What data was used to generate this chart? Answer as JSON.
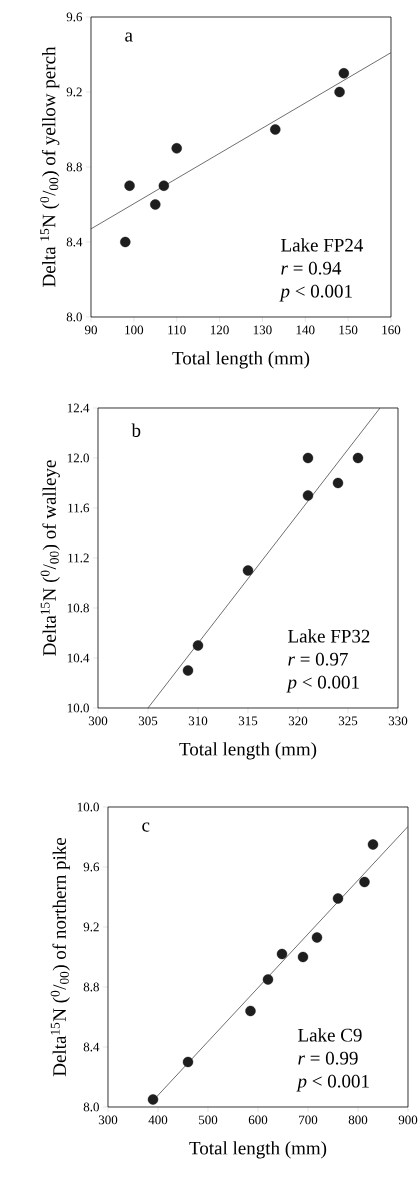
{
  "chart_data": [
    {
      "type": "scatter",
      "xlabel": "Total length (mm)",
      "ylabel": "Delta $^{15}$N ($^{0}$/$_{00}$) of yellow perch",
      "marker": "circle",
      "xlim": [
        90,
        160
      ],
      "xticks": [
        90,
        100,
        110,
        120,
        130,
        140,
        150,
        160
      ],
      "ylim": [
        8.0,
        9.6
      ],
      "yticks": [
        {
          "value": 8.0,
          "label": "8.0"
        },
        {
          "value": 8.4,
          "label": "8.4"
        },
        {
          "value": 8.8,
          "label": "8.8"
        },
        {
          "value": 9.2,
          "label": "9.2"
        },
        {
          "value": 9.6,
          "label": "9.6"
        }
      ],
      "annotations": [
        "a",
        "Lake FP24",
        "*r* = 0.94",
        "*p* < 0.001"
      ],
      "series": [
        {
          "color": "#1e1e1e",
          "x": [
            98,
            99,
            105,
            107,
            110,
            133,
            148,
            149
          ],
          "values": [
            8.4,
            8.7,
            8.6,
            8.7,
            8.9,
            9.0,
            9.2,
            9.3
          ]
        },
        {
          "type": "line",
          "color": "#303030",
          "marker": "none",
          "x": [
            90,
            160
          ],
          "values": [
            8.47,
            9.41
          ]
        }
      ]
    },
    {
      "type": "scatter",
      "xlabel": "Total length (mm)",
      "ylabel": "Delta$^{15}$N ($^{0}$/$_{00}$) of walleye",
      "marker": "circle",
      "xlim": [
        300,
        330
      ],
      "xticks": [
        300,
        305,
        310,
        315,
        320,
        325,
        330
      ],
      "ylim": [
        10.0,
        12.4
      ],
      "yticks": [
        {
          "value": 10.0,
          "label": "10.0"
        },
        {
          "value": 10.4,
          "label": "10.4"
        },
        {
          "value": 10.8,
          "label": "10.8"
        },
        {
          "value": 11.2,
          "label": "11.2"
        },
        {
          "value": 11.6,
          "label": "11.6"
        },
        {
          "value": 12.0,
          "label": "12.0"
        },
        {
          "value": 12.4,
          "label": "12.4"
        }
      ],
      "annotations": [
        "b",
        "Lake FP32",
        "*r* = 0.97",
        "*p* < 0.001"
      ],
      "series": [
        {
          "color": "#1e1e1e",
          "x": [
            309,
            310,
            315,
            321,
            321,
            324,
            326
          ],
          "values": [
            10.3,
            10.5,
            11.1,
            11.7,
            12.0,
            11.8,
            12.0
          ]
        },
        {
          "type": "line",
          "color": "#303030",
          "marker": "none",
          "x": [
            305,
            328.2
          ],
          "values": [
            10.0,
            12.4
          ]
        }
      ]
    },
    {
      "type": "scatter",
      "xlabel": "Total length (mm)",
      "ylabel": "Delta$^{15}$N ($^{0}$/$_{00}$) of northern pike",
      "marker": "circle",
      "xlim": [
        300,
        900
      ],
      "xticks": [
        300,
        400,
        500,
        600,
        700,
        800,
        900
      ],
      "ylim": [
        8.0,
        10.0
      ],
      "yticks": [
        {
          "value": 8.0,
          "label": "8.0"
        },
        {
          "value": 8.4,
          "label": "8.4"
        },
        {
          "value": 8.8,
          "label": "8.8"
        },
        {
          "value": 9.2,
          "label": "9.2"
        },
        {
          "value": 9.6,
          "label": "9.6"
        },
        {
          "value": 10.0,
          "label": "10.0"
        }
      ],
      "annotations": [
        "c",
        "Lake C9",
        "*r* = 0.99",
        "*p* < 0.001"
      ],
      "series": [
        {
          "color": "#1e1e1e",
          "x": [
            390,
            460,
            585,
            620,
            648,
            690,
            718,
            760,
            813,
            830
          ],
          "values": [
            8.05,
            8.3,
            8.64,
            8.85,
            9.02,
            9.0,
            9.13,
            9.39,
            9.5,
            9.75
          ]
        },
        {
          "type": "line",
          "color": "#303030",
          "marker": "none",
          "x": [
            395,
            900
          ],
          "values": [
            8.06,
            9.87
          ]
        }
      ]
    }
  ]
}
